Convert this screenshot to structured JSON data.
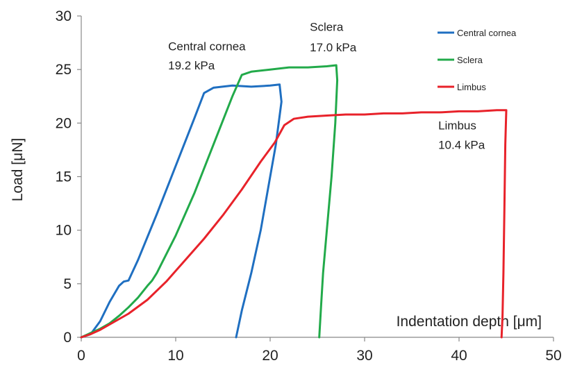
{
  "chart_data": {
    "type": "line",
    "title": "",
    "xlabel": "Indentation depth [μm]",
    "ylabel": "Load [μN]",
    "xlim": [
      0,
      50
    ],
    "ylim": [
      0,
      30
    ],
    "x_ticks": [
      0,
      10,
      20,
      30,
      40,
      50
    ],
    "y_ticks": [
      0,
      5,
      10,
      15,
      20,
      25,
      30
    ],
    "grid": false,
    "legend_position": "top-right",
    "series": [
      {
        "name": "Central cornea",
        "color": "#1f6fc1",
        "points": [
          [
            0,
            0
          ],
          [
            1,
            0.3
          ],
          [
            2,
            1.5
          ],
          [
            3,
            3.3
          ],
          [
            4,
            4.8
          ],
          [
            4.5,
            5.2
          ],
          [
            5,
            5.3
          ],
          [
            6,
            7.2
          ],
          [
            8,
            11.5
          ],
          [
            10,
            16
          ],
          [
            12,
            20.5
          ],
          [
            13,
            22.8
          ],
          [
            14,
            23.3
          ],
          [
            16,
            23.5
          ],
          [
            18,
            23.4
          ],
          [
            20,
            23.5
          ],
          [
            21,
            23.6
          ],
          [
            21.2,
            22
          ],
          [
            20.6,
            18
          ],
          [
            19.8,
            14
          ],
          [
            19,
            10
          ],
          [
            18,
            6
          ],
          [
            17,
            2.5
          ],
          [
            16.4,
            0
          ]
        ]
      },
      {
        "name": "Sclera",
        "color": "#22aa4a",
        "points": [
          [
            0,
            0
          ],
          [
            1,
            0.4
          ],
          [
            2,
            0.8
          ],
          [
            3,
            1.3
          ],
          [
            4,
            2
          ],
          [
            5,
            2.8
          ],
          [
            6,
            3.7
          ],
          [
            7,
            4.8
          ],
          [
            7.5,
            5.3
          ],
          [
            8,
            6
          ],
          [
            10,
            9.5
          ],
          [
            12,
            13.5
          ],
          [
            14,
            18
          ],
          [
            16,
            22.5
          ],
          [
            17,
            24.5
          ],
          [
            18,
            24.8
          ],
          [
            20,
            25
          ],
          [
            22,
            25.2
          ],
          [
            24,
            25.2
          ],
          [
            26,
            25.3
          ],
          [
            27,
            25.4
          ],
          [
            27.1,
            24
          ],
          [
            26.9,
            20
          ],
          [
            26.5,
            15
          ],
          [
            26,
            10
          ],
          [
            25.6,
            6
          ],
          [
            25.4,
            3
          ],
          [
            25.2,
            0
          ]
        ]
      },
      {
        "name": "Limbus",
        "color": "#e8222a",
        "points": [
          [
            0,
            0
          ],
          [
            1,
            0.3
          ],
          [
            2,
            0.7
          ],
          [
            3,
            1.2
          ],
          [
            5,
            2.2
          ],
          [
            7,
            3.5
          ],
          [
            9,
            5.2
          ],
          [
            11,
            7.2
          ],
          [
            13,
            9.2
          ],
          [
            15,
            11.4
          ],
          [
            17,
            13.8
          ],
          [
            19,
            16.4
          ],
          [
            20.5,
            18.2
          ],
          [
            21.5,
            19.8
          ],
          [
            22.5,
            20.4
          ],
          [
            24,
            20.6
          ],
          [
            26,
            20.7
          ],
          [
            28,
            20.8
          ],
          [
            30,
            20.8
          ],
          [
            32,
            20.9
          ],
          [
            34,
            20.9
          ],
          [
            36,
            21
          ],
          [
            38,
            21
          ],
          [
            40,
            21.1
          ],
          [
            42,
            21.1
          ],
          [
            44,
            21.2
          ],
          [
            45,
            21.2
          ],
          [
            44.9,
            18
          ],
          [
            44.8,
            12
          ],
          [
            44.7,
            6
          ],
          [
            44.6,
            2
          ],
          [
            44.5,
            0
          ]
        ]
      }
    ],
    "annotations": [
      {
        "text": "Central cornea",
        "x": 9.2,
        "y": 26.8
      },
      {
        "text": "19.2 kPa",
        "x": 9.2,
        "y": 25.0
      },
      {
        "text": "Sclera",
        "x": 24.2,
        "y": 28.6
      },
      {
        "text": "17.0 kPa",
        "x": 24.2,
        "y": 26.7
      },
      {
        "text": "Limbus",
        "x": 37.8,
        "y": 19.4
      },
      {
        "text": "10.4 kPa",
        "x": 37.8,
        "y": 17.6
      }
    ]
  }
}
